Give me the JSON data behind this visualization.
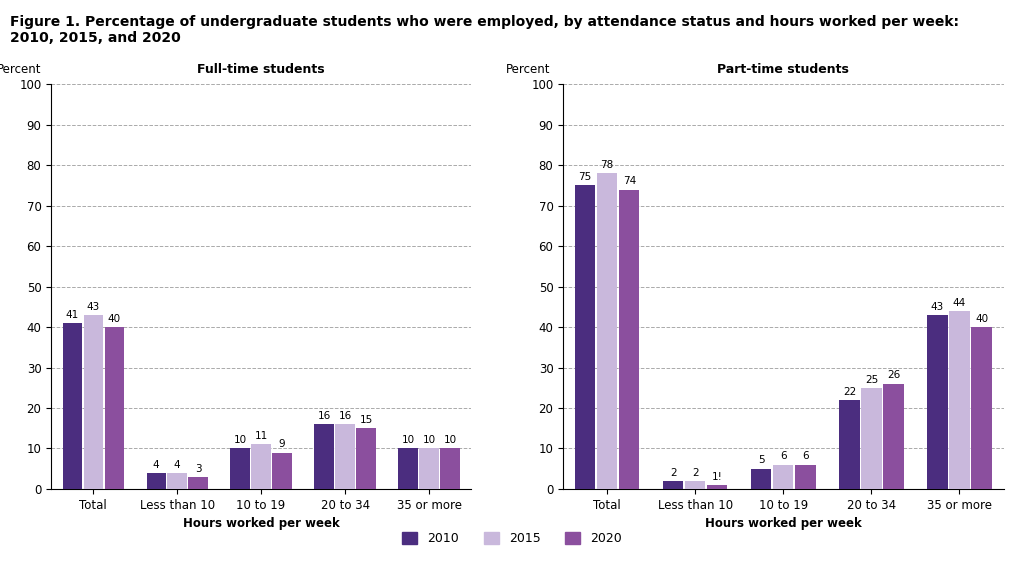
{
  "title": "Figure 1. Percentage of undergraduate students who were employed, by attendance status and hours worked per week:\n2010, 2015, and 2020",
  "left_title": "Full-time students",
  "right_title": "Part-time students",
  "ylabel": "Percent",
  "xlabel": "Hours worked per week",
  "categories": [
    "Total",
    "Less than 10",
    "10 to 19",
    "20 to 34",
    "35 or more"
  ],
  "fulltime": {
    "2010": [
      41,
      4,
      10,
      16,
      10
    ],
    "2015": [
      43,
      4,
      11,
      16,
      10
    ],
    "2020": [
      40,
      3,
      9,
      15,
      10
    ]
  },
  "parttime": {
    "2010": [
      75,
      2,
      5,
      22,
      43
    ],
    "2015": [
      78,
      2,
      6,
      25,
      44
    ],
    "2020": [
      74,
      1,
      6,
      26,
      40
    ]
  },
  "colors": {
    "2010": "#4B2D7F",
    "2015": "#C9B8DC",
    "2020": "#8B4F9E"
  },
  "legend_labels": [
    "2010",
    "2015",
    "2020"
  ],
  "ylim": [
    0,
    100
  ],
  "yticks": [
    0,
    10,
    20,
    30,
    40,
    50,
    60,
    70,
    80,
    90,
    100
  ],
  "title_bg_color": "#D6E0EA",
  "plot_bg_color": "#FFFFFF",
  "fig_bg_color": "#FFFFFF",
  "title_fontsize": 10,
  "bar_width": 0.25,
  "label_fontsize": 7.5,
  "axis_title_fontsize": 9,
  "parttime_special_label": {
    "category_idx": 1,
    "year": "2020",
    "label": "1!"
  }
}
